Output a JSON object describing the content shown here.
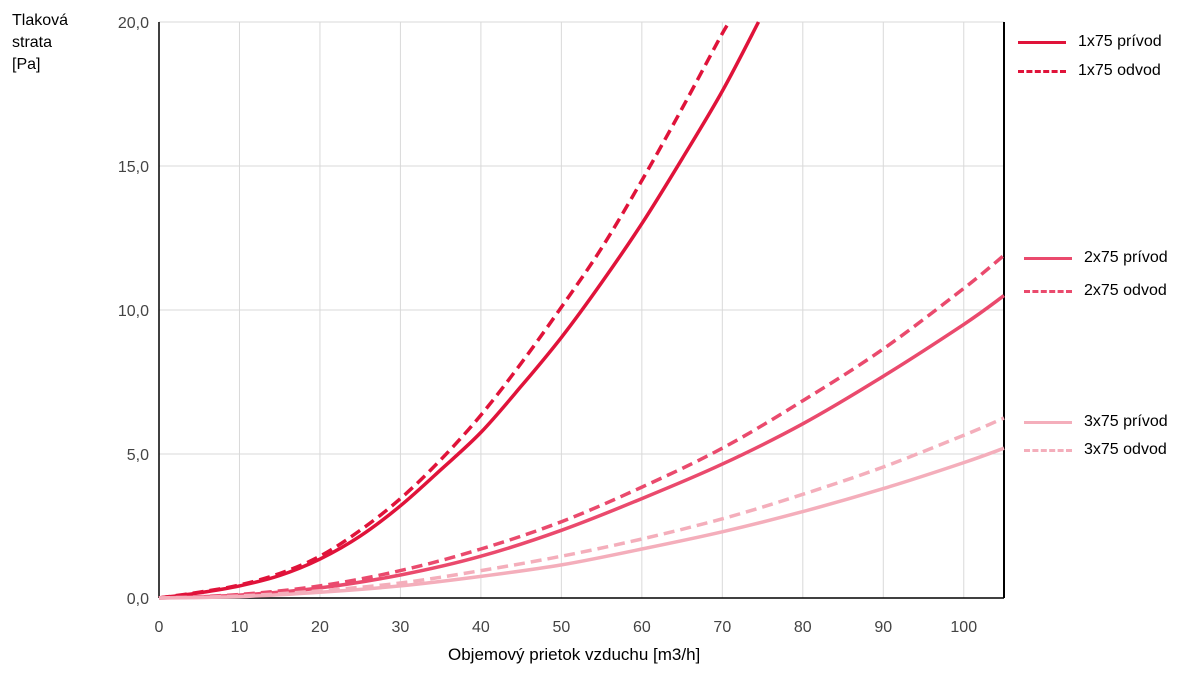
{
  "chart_data": {
    "type": "line",
    "ylabel_lines": [
      "Tlaková",
      "strata",
      "[Pa]"
    ],
    "xlabel": "Objemový prietok vzduchu [m3/h]",
    "xlim": [
      0,
      105
    ],
    "ylim": [
      0,
      20
    ],
    "x_ticks": [
      "0",
      "10",
      "20",
      "30",
      "40",
      "50",
      "60",
      "70",
      "80",
      "90",
      "100"
    ],
    "y_ticks": [
      "0,0",
      "5,0",
      "10,0",
      "15,0",
      "20,0"
    ],
    "grid": true,
    "legend_position": "right",
    "series": [
      {
        "name": "1x75 prívod",
        "color": "#e0133a",
        "dash": "solid",
        "x": [
          0,
          5,
          10,
          15,
          20,
          25,
          30,
          35,
          40,
          45,
          50,
          55,
          60,
          65,
          70,
          74.5
        ],
        "y": [
          0,
          0.18,
          0.42,
          0.78,
          1.35,
          2.15,
          3.2,
          4.45,
          5.75,
          7.35,
          9.05,
          10.95,
          13.0,
          15.25,
          17.6,
          20.0
        ]
      },
      {
        "name": "1x75 odvod",
        "color": "#e0133a",
        "dash": "dashed",
        "x": [
          0,
          5,
          10,
          15,
          20,
          25,
          30,
          35,
          40,
          45,
          50,
          55,
          60,
          65,
          70,
          71
        ],
        "y": [
          0,
          0.2,
          0.45,
          0.85,
          1.45,
          2.35,
          3.45,
          4.8,
          6.35,
          8.15,
          10.1,
          12.15,
          14.5,
          17.0,
          19.6,
          20.0
        ]
      },
      {
        "name": "2x75 prívod",
        "color": "#ea4a6d",
        "dash": "solid",
        "x": [
          0,
          10,
          20,
          30,
          40,
          50,
          60,
          70,
          80,
          90,
          100,
          105
        ],
        "y": [
          0,
          0.1,
          0.35,
          0.8,
          1.45,
          2.35,
          3.45,
          4.65,
          6.05,
          7.7,
          9.5,
          10.5
        ]
      },
      {
        "name": "2x75 odvod",
        "color": "#ea4a6d",
        "dash": "dashed",
        "x": [
          0,
          10,
          20,
          30,
          40,
          50,
          60,
          70,
          80,
          90,
          100,
          105
        ],
        "y": [
          0,
          0.12,
          0.42,
          0.95,
          1.7,
          2.65,
          3.85,
          5.2,
          6.85,
          8.65,
          10.75,
          11.9
        ]
      },
      {
        "name": "3x75 prívod",
        "color": "#f4aebb",
        "dash": "solid",
        "x": [
          0,
          10,
          20,
          30,
          40,
          50,
          60,
          70,
          80,
          90,
          100,
          105
        ],
        "y": [
          0,
          0.05,
          0.2,
          0.42,
          0.75,
          1.15,
          1.7,
          2.3,
          3.0,
          3.8,
          4.7,
          5.2
        ]
      },
      {
        "name": "3x75 odvod",
        "color": "#f4aebb",
        "dash": "dashed",
        "x": [
          0,
          10,
          20,
          30,
          40,
          50,
          60,
          70,
          80,
          90,
          100,
          105
        ],
        "y": [
          0,
          0.07,
          0.25,
          0.52,
          0.95,
          1.45,
          2.05,
          2.75,
          3.6,
          4.55,
          5.65,
          6.25
        ]
      }
    ]
  }
}
